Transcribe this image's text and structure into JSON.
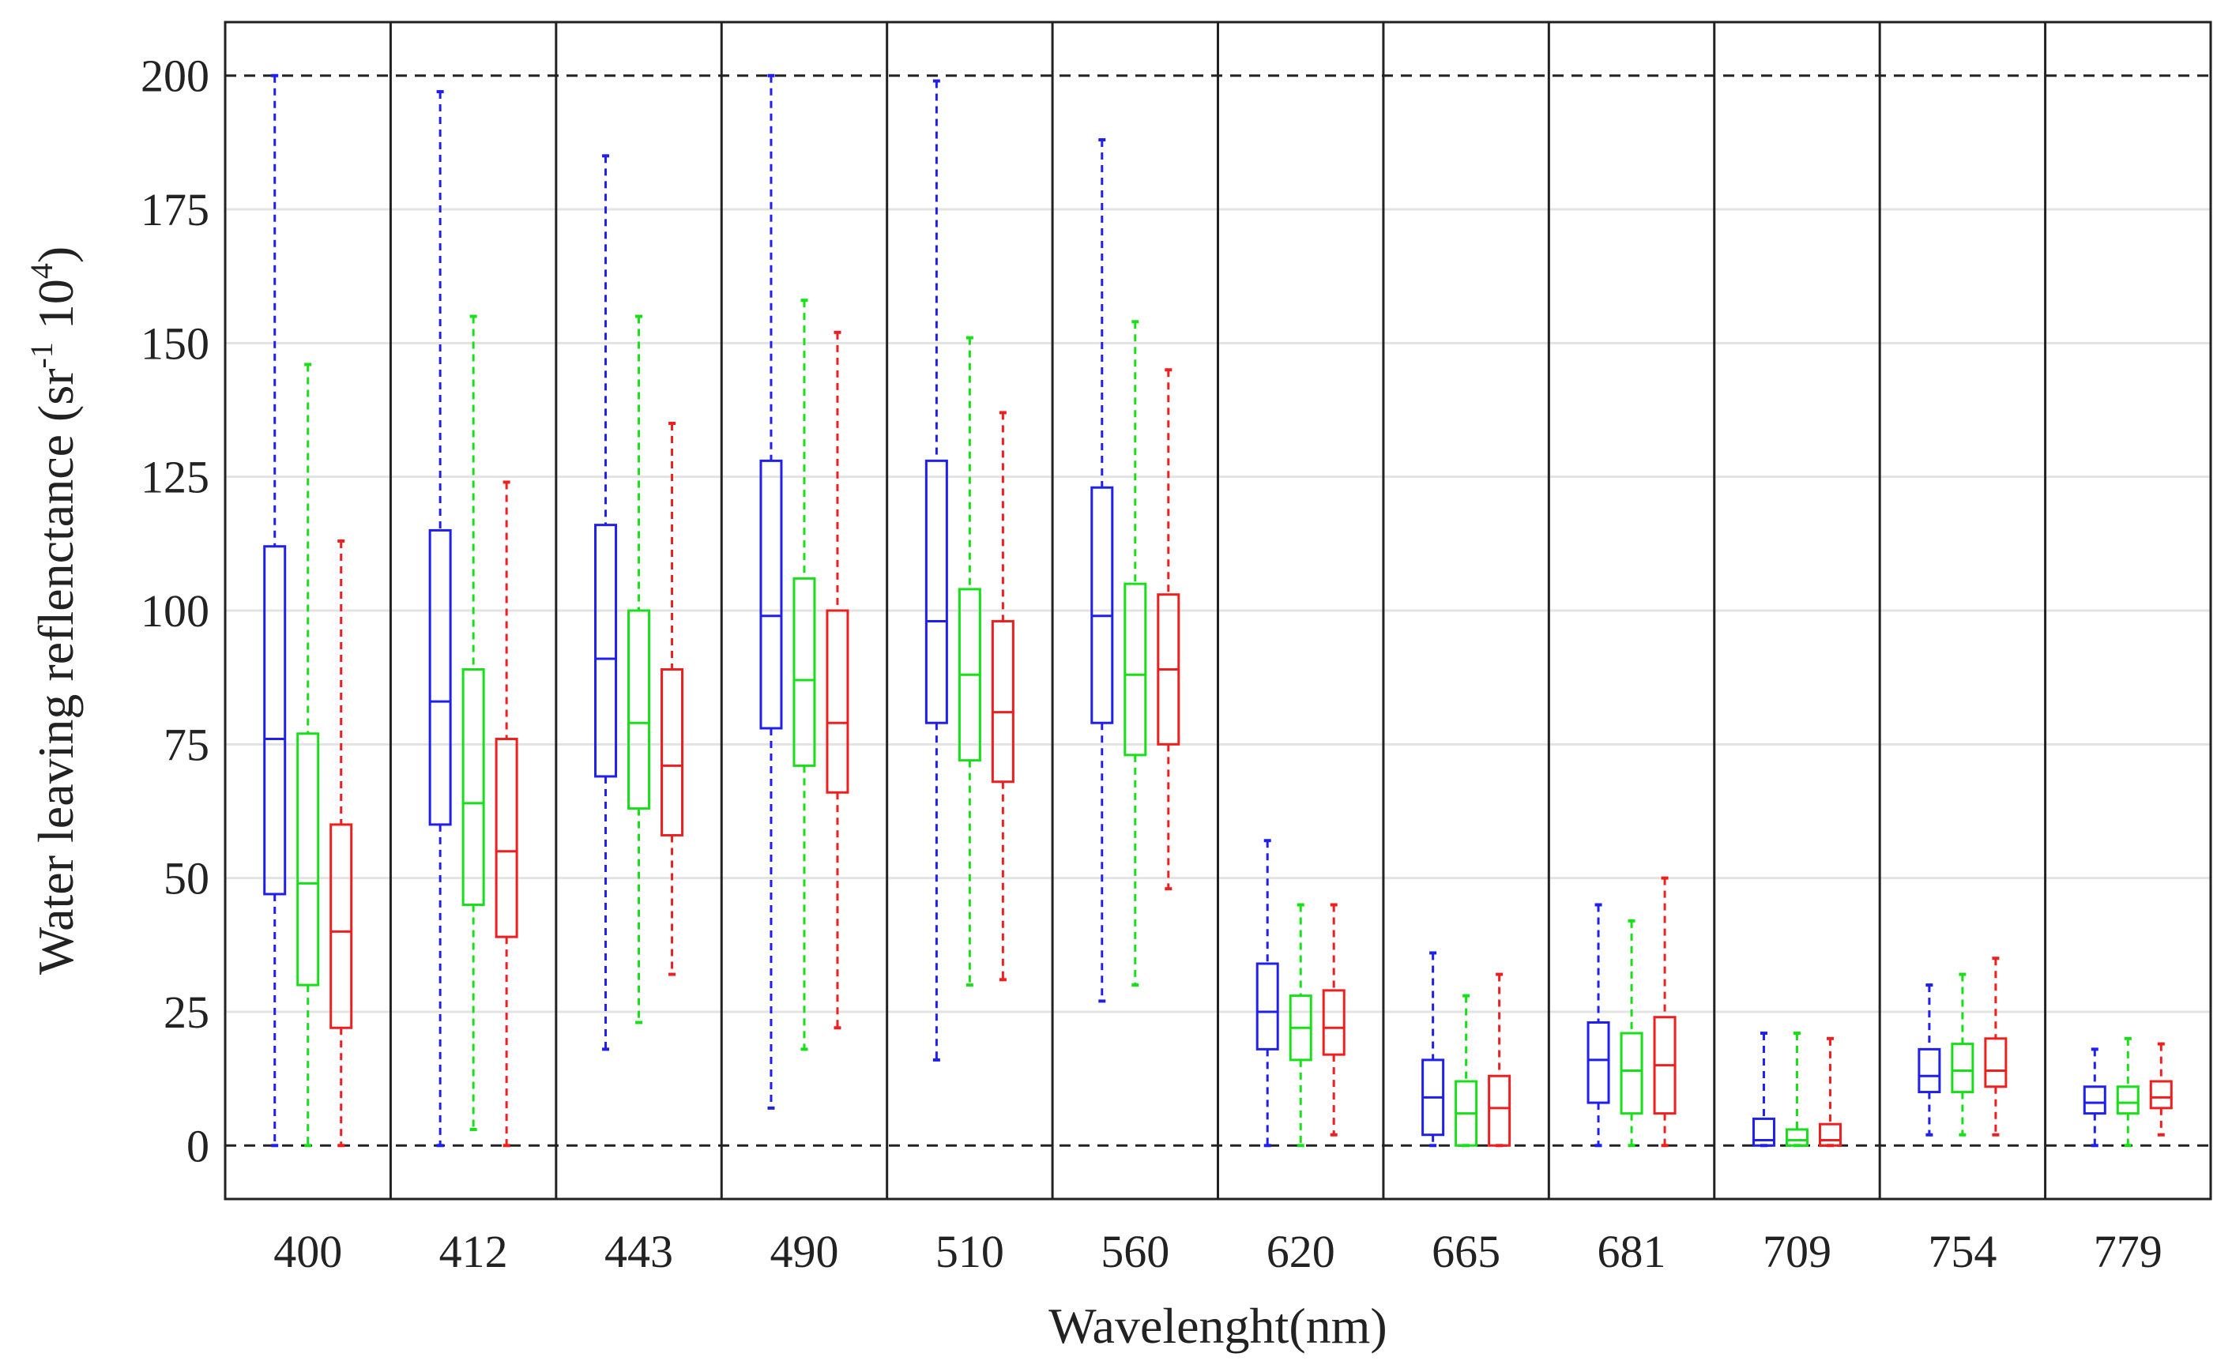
{
  "chart_data": {
    "type": "box",
    "xlabel": "Wavelenght(nm)",
    "ylabel": "Water leaving reflenctance (sr",
    "ylabel_sup1": "-1",
    "ylabel_mid": " 10",
    "ylabel_sup2": "4",
    "ylabel_end": ")",
    "ylim": [
      -10,
      210
    ],
    "yticks": [
      0,
      25,
      50,
      75,
      100,
      125,
      150,
      175,
      200
    ],
    "reference_lines": [
      0,
      200
    ],
    "grid": "horizontal",
    "categories": [
      "400",
      "412",
      "443",
      "490",
      "510",
      "560",
      "620",
      "665",
      "681",
      "709",
      "754",
      "779"
    ],
    "series_colors": [
      "#1f1fef",
      "#18e018",
      "#ef1f1f"
    ],
    "series": [
      {
        "color": "#1f1fef",
        "boxes": [
          {
            "min": 0,
            "q1": 47,
            "median": 76,
            "q3": 112,
            "max": 200
          },
          {
            "min": 0,
            "q1": 60,
            "median": 83,
            "q3": 115,
            "max": 197
          },
          {
            "min": 18,
            "q1": 69,
            "median": 91,
            "q3": 116,
            "max": 185
          },
          {
            "min": 7,
            "q1": 78,
            "median": 99,
            "q3": 128,
            "max": 200
          },
          {
            "min": 16,
            "q1": 79,
            "median": 98,
            "q3": 128,
            "max": 199
          },
          {
            "min": 27,
            "q1": 79,
            "median": 99,
            "q3": 123,
            "max": 188
          },
          {
            "min": 0,
            "q1": 18,
            "median": 25,
            "q3": 34,
            "max": 57
          },
          {
            "min": 0,
            "q1": 2,
            "median": 9,
            "q3": 16,
            "max": 36
          },
          {
            "min": 0,
            "q1": 8,
            "median": 16,
            "q3": 23,
            "max": 45
          },
          {
            "min": 0,
            "q1": 0,
            "median": 1,
            "q3": 5,
            "max": 21
          },
          {
            "min": 2,
            "q1": 10,
            "median": 13,
            "q3": 18,
            "max": 30
          },
          {
            "min": 0,
            "q1": 6,
            "median": 8,
            "q3": 11,
            "max": 18
          }
        ]
      },
      {
        "color": "#18e018",
        "boxes": [
          {
            "min": 0,
            "q1": 30,
            "median": 49,
            "q3": 77,
            "max": 146
          },
          {
            "min": 3,
            "q1": 45,
            "median": 64,
            "q3": 89,
            "max": 155
          },
          {
            "min": 23,
            "q1": 63,
            "median": 79,
            "q3": 100,
            "max": 155
          },
          {
            "min": 18,
            "q1": 71,
            "median": 87,
            "q3": 106,
            "max": 158
          },
          {
            "min": 30,
            "q1": 72,
            "median": 88,
            "q3": 104,
            "max": 151
          },
          {
            "min": 30,
            "q1": 73,
            "median": 88,
            "q3": 105,
            "max": 154
          },
          {
            "min": 0,
            "q1": 16,
            "median": 22,
            "q3": 28,
            "max": 45
          },
          {
            "min": 0,
            "q1": 0,
            "median": 6,
            "q3": 12,
            "max": 28
          },
          {
            "min": 0,
            "q1": 6,
            "median": 14,
            "q3": 21,
            "max": 42
          },
          {
            "min": 0,
            "q1": 0,
            "median": 1,
            "q3": 3,
            "max": 21
          },
          {
            "min": 2,
            "q1": 10,
            "median": 14,
            "q3": 19,
            "max": 32
          },
          {
            "min": 0,
            "q1": 6,
            "median": 8,
            "q3": 11,
            "max": 20
          }
        ]
      },
      {
        "color": "#ef1f1f",
        "boxes": [
          {
            "min": 0,
            "q1": 22,
            "median": 40,
            "q3": 60,
            "max": 113
          },
          {
            "min": 0,
            "q1": 39,
            "median": 55,
            "q3": 76,
            "max": 124
          },
          {
            "min": 32,
            "q1": 58,
            "median": 71,
            "q3": 89,
            "max": 135
          },
          {
            "min": 22,
            "q1": 66,
            "median": 79,
            "q3": 100,
            "max": 152
          },
          {
            "min": 31,
            "q1": 68,
            "median": 81,
            "q3": 98,
            "max": 137
          },
          {
            "min": 48,
            "q1": 75,
            "median": 89,
            "q3": 103,
            "max": 145
          },
          {
            "min": 2,
            "q1": 17,
            "median": 22,
            "q3": 29,
            "max": 45
          },
          {
            "min": 0,
            "q1": 0,
            "median": 7,
            "q3": 13,
            "max": 32
          },
          {
            "min": 0,
            "q1": 6,
            "median": 15,
            "q3": 24,
            "max": 50
          },
          {
            "min": 0,
            "q1": 0,
            "median": 1,
            "q3": 4,
            "max": 20
          },
          {
            "min": 2,
            "q1": 11,
            "median": 14,
            "q3": 20,
            "max": 35
          },
          {
            "min": 2,
            "q1": 7,
            "median": 9,
            "q3": 12,
            "max": 19
          }
        ]
      }
    ]
  }
}
